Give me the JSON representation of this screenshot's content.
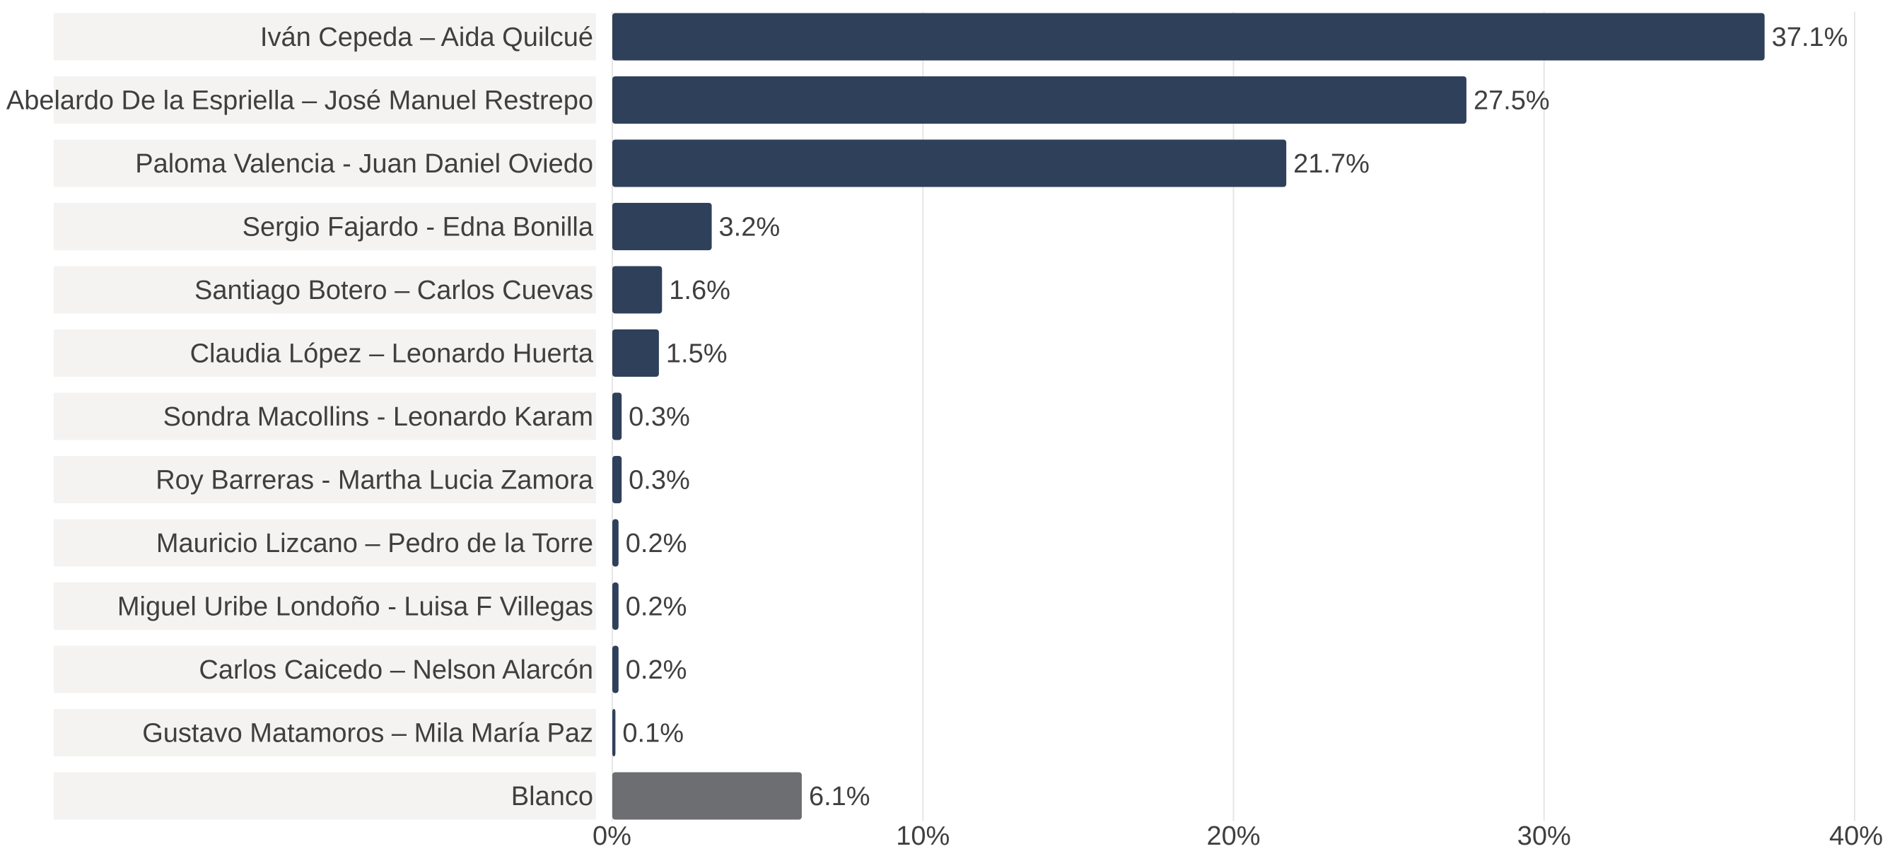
{
  "chart_data": {
    "type": "bar",
    "orientation": "horizontal",
    "categories": [
      "Iván Cepeda – Aida Quilcué",
      "Abelardo De la Espriella – José Manuel Restrepo",
      "Paloma Valencia - Juan Daniel Oviedo",
      "Sergio Fajardo - Edna Bonilla",
      "Santiago Botero – Carlos Cuevas",
      "Claudia López – Leonardo Huerta",
      "Sondra Macollins - Leonardo Karam",
      "Roy Barreras - Martha Lucia Zamora",
      "Mauricio Lizcano – Pedro de la Torre",
      "Miguel Uribe Londoño - Luisa F Villegas",
      "Carlos Caicedo – Nelson Alarcón",
      "Gustavo Matamoros – Mila María Paz",
      "Blanco"
    ],
    "values": [
      37.1,
      27.5,
      21.7,
      3.2,
      1.6,
      1.5,
      0.3,
      0.3,
      0.2,
      0.2,
      0.2,
      0.1,
      6.1
    ],
    "value_labels": [
      "37.1%",
      "27.5%",
      "21.7%",
      "3.2%",
      "1.6%",
      "1.5%",
      "0.3%",
      "0.3%",
      "0.2%",
      "0.2%",
      "0.2%",
      "0.1%",
      "6.1%"
    ],
    "bar_colors": [
      "#2f405a",
      "#2f405a",
      "#2f405a",
      "#2f405a",
      "#2f405a",
      "#2f405a",
      "#2f405a",
      "#2f405a",
      "#2f405a",
      "#2f405a",
      "#2f405a",
      "#2f405a",
      "#6d6e72"
    ],
    "label_background_color": "#f4f3f1",
    "gridline_color": "#e6e6e6",
    "text_color": "#3f3f3f",
    "xlim": [
      0,
      40
    ],
    "xticks": [
      0,
      10,
      20,
      30,
      40
    ],
    "xtick_labels": [
      "0%",
      "10%",
      "20%",
      "30%",
      "40%"
    ],
    "grid": "vertical",
    "title": "",
    "xlabel": "",
    "ylabel": ""
  }
}
